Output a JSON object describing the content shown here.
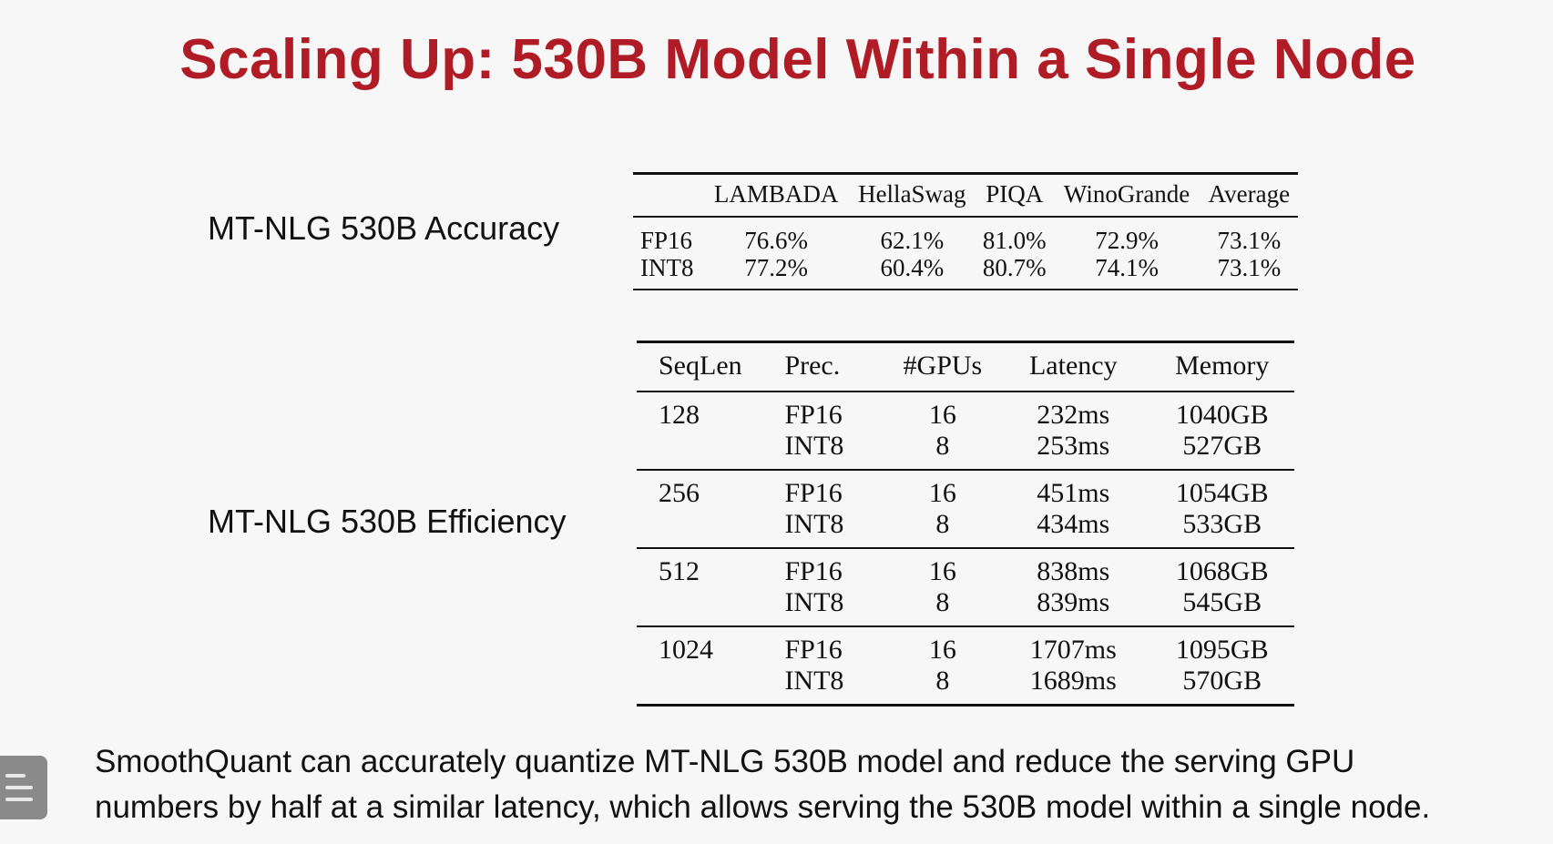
{
  "title": "Scaling Up: 530B Model Within a Single Node",
  "accuracy": {
    "label": "MT-NLG 530B Accuracy",
    "headers": [
      "",
      "LAMBADA",
      "HellaSwag",
      "PIQA",
      "WinoGrande",
      "Average"
    ],
    "rows": [
      [
        "FP16",
        "76.6%",
        "62.1%",
        "81.0%",
        "72.9%",
        "73.1%"
      ],
      [
        "INT8",
        "77.2%",
        "60.4%",
        "80.7%",
        "74.1%",
        "73.1%"
      ]
    ]
  },
  "efficiency": {
    "label": "MT-NLG 530B Efficiency",
    "headers": [
      "SeqLen",
      "Prec.",
      "#GPUs",
      "Latency",
      "Memory"
    ],
    "groups": [
      {
        "seqlen": "128",
        "rows": [
          [
            "FP16",
            "16",
            "232ms",
            "1040GB"
          ],
          [
            "INT8",
            "8",
            "253ms",
            "527GB"
          ]
        ]
      },
      {
        "seqlen": "256",
        "rows": [
          [
            "FP16",
            "16",
            "451ms",
            "1054GB"
          ],
          [
            "INT8",
            "8",
            "434ms",
            "533GB"
          ]
        ]
      },
      {
        "seqlen": "512",
        "rows": [
          [
            "FP16",
            "16",
            "838ms",
            "1068GB"
          ],
          [
            "INT8",
            "8",
            "839ms",
            "545GB"
          ]
        ]
      },
      {
        "seqlen": "1024",
        "rows": [
          [
            "FP16",
            "16",
            "1707ms",
            "1095GB"
          ],
          [
            "INT8",
            "8",
            "1689ms",
            "570GB"
          ]
        ]
      }
    ]
  },
  "footer": {
    "line1": "SmoothQuant can accurately quantize MT-NLG 530B model and reduce the serving GPU",
    "line2": "numbers by half at a similar latency, which allows serving the 530B model within a single node."
  },
  "menu_icon": "menu-icon"
}
